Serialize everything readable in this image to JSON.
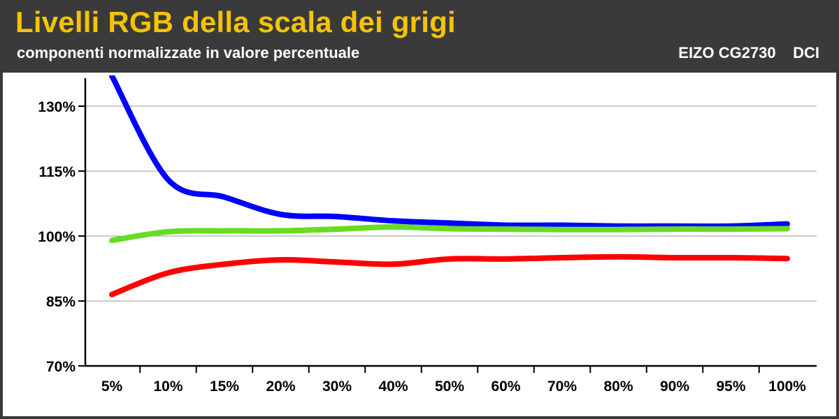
{
  "header": {
    "title": "Livelli RGB della scala dei grigi",
    "subtitle": "componenti normalizzate in valore percentuale",
    "device": "EIZO CG2730    DCI"
  },
  "chart_data": {
    "type": "line",
    "title": "Livelli RGB della scala dei grigi",
    "subtitle": "componenti normalizzate in valore percentuale",
    "categories": [
      "5%",
      "10%",
      "15%",
      "20%",
      "30%",
      "40%",
      "50%",
      "60%",
      "70%",
      "80%",
      "90%",
      "95%",
      "100%"
    ],
    "y_ticks": [
      "70%",
      "85%",
      "100%",
      "115%",
      "130%"
    ],
    "ylim": [
      70,
      135
    ],
    "grid": true,
    "series": [
      {
        "color": "#0000ff",
        "values": [
          137,
          113,
          109,
          105,
          104.5,
          103.5,
          103,
          102.5,
          102.5,
          102.3,
          102.3,
          102.3,
          102.8
        ]
      },
      {
        "color": "#66dd22",
        "values": [
          99,
          101,
          101.2,
          101.2,
          101.6,
          102.1,
          101.7,
          101.6,
          101.5,
          101.5,
          101.6,
          101.6,
          101.7
        ]
      },
      {
        "color": "#ff0000",
        "values": [
          86.5,
          91.5,
          93.5,
          94.5,
          94,
          93.5,
          94.7,
          94.7,
          95,
          95.2,
          95,
          95,
          94.8
        ]
      }
    ]
  }
}
